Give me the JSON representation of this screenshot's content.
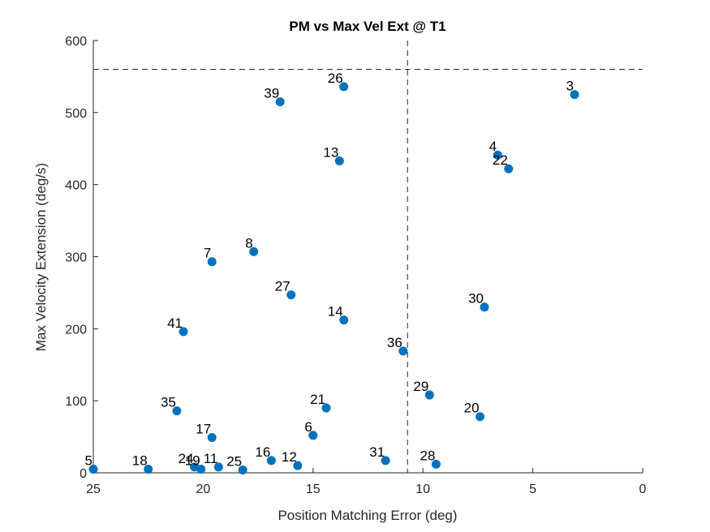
{
  "chart_data": {
    "type": "scatter",
    "title": "PM vs Max Vel Ext @ T1",
    "xlabel": "Position Matching Error (deg)",
    "ylabel": "Max Velocity Extension (deg/s)",
    "xlim": [
      25,
      0
    ],
    "ylim": [
      0,
      600
    ],
    "x_reversed": true,
    "xticks": [
      25,
      20,
      15,
      10,
      5,
      0
    ],
    "yticks": [
      0,
      100,
      200,
      300,
      400,
      500,
      600
    ],
    "grid": false,
    "reference_lines": {
      "horizontal_y": 560,
      "vertical_x": 10.7
    },
    "marker_color": "#0072BD",
    "points": [
      {
        "label": "3",
        "x": 3.1,
        "y": 525
      },
      {
        "label": "4",
        "x": 6.6,
        "y": 441
      },
      {
        "label": "22",
        "x": 6.1,
        "y": 422
      },
      {
        "label": "26",
        "x": 13.6,
        "y": 536
      },
      {
        "label": "39",
        "x": 16.5,
        "y": 515
      },
      {
        "label": "13",
        "x": 13.8,
        "y": 433
      },
      {
        "label": "7",
        "x": 19.6,
        "y": 293
      },
      {
        "label": "8",
        "x": 17.7,
        "y": 307
      },
      {
        "label": "27",
        "x": 16.0,
        "y": 247
      },
      {
        "label": "30",
        "x": 7.2,
        "y": 230
      },
      {
        "label": "14",
        "x": 13.6,
        "y": 212
      },
      {
        "label": "41",
        "x": 20.9,
        "y": 196
      },
      {
        "label": "36",
        "x": 10.9,
        "y": 169
      },
      {
        "label": "29",
        "x": 9.7,
        "y": 108
      },
      {
        "label": "35",
        "x": 21.2,
        "y": 86
      },
      {
        "label": "21",
        "x": 14.4,
        "y": 90
      },
      {
        "label": "20",
        "x": 7.4,
        "y": 78
      },
      {
        "label": "17",
        "x": 19.6,
        "y": 49
      },
      {
        "label": "6",
        "x": 15.0,
        "y": 52
      },
      {
        "label": "5",
        "x": 25.0,
        "y": 5
      },
      {
        "label": "18",
        "x": 22.5,
        "y": 5
      },
      {
        "label": "24",
        "x": 20.4,
        "y": 8
      },
      {
        "label": "19",
        "x": 20.1,
        "y": 5
      },
      {
        "label": "11",
        "x": 19.3,
        "y": 8
      },
      {
        "label": "25",
        "x": 18.2,
        "y": 4
      },
      {
        "label": "16",
        "x": 16.9,
        "y": 17
      },
      {
        "label": "12",
        "x": 15.7,
        "y": 10
      },
      {
        "label": "31",
        "x": 11.7,
        "y": 17
      },
      {
        "label": "28",
        "x": 9.4,
        "y": 12
      }
    ]
  }
}
